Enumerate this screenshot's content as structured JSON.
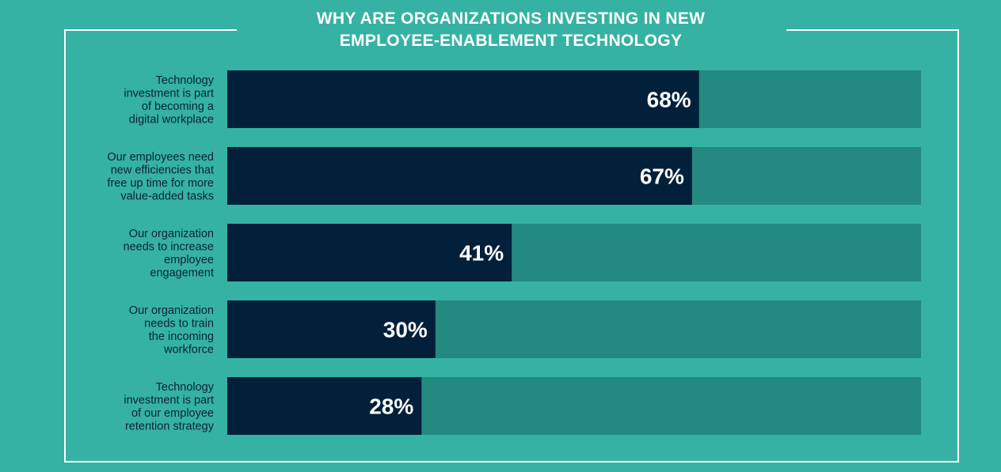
{
  "colors": {
    "background": "#35b2a3",
    "track": "#238981",
    "bar": "#03203a",
    "frame": "#ffffff",
    "label": "#0c2238"
  },
  "chart_data": {
    "type": "bar",
    "orientation": "horizontal",
    "title_lines": [
      "WHY ARE ORGANIZATIONS INVESTING IN NEW",
      "EMPLOYEE-ENABLEMENT TECHNOLOGY"
    ],
    "xlim": [
      0,
      100
    ],
    "unit": "%",
    "categories": [
      [
        "Technology",
        "investment is part",
        "of becoming a",
        "digital workplace"
      ],
      [
        "Our employees need",
        "new efficiencies that",
        "free up time for more",
        "value-added tasks"
      ],
      [
        "Our organization",
        "needs to increase",
        "employee",
        "engagement"
      ],
      [
        "Our organization",
        "needs to train",
        "the incoming",
        "workforce"
      ],
      [
        "Technology",
        "investment is part",
        "of our employee",
        "retention strategy"
      ]
    ],
    "values": [
      68,
      67,
      41,
      30,
      28
    ],
    "value_labels": [
      "68%",
      "67%",
      "41%",
      "30%",
      "28%"
    ]
  }
}
